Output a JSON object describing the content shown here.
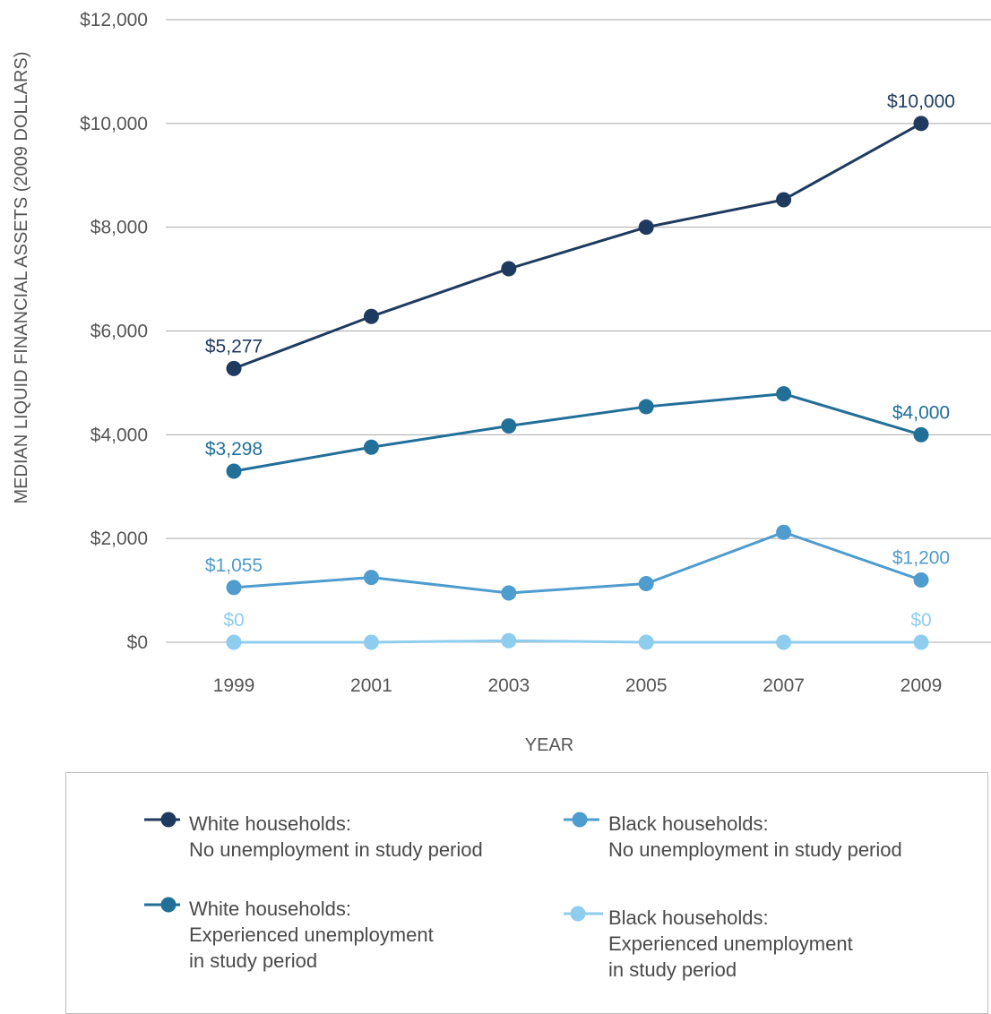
{
  "chart_data": {
    "type": "line",
    "title": "",
    "ylabel": "MEDIAN LIQUID FINANCIAL ASSETS (2009 DOLLARS)",
    "xlabel": "YEAR",
    "x": [
      "1999",
      "2001",
      "2003",
      "2005",
      "2007",
      "2009"
    ],
    "ylim": [
      0,
      12000
    ],
    "yticks": [
      0,
      2000,
      4000,
      6000,
      8000,
      10000,
      12000
    ],
    "ytick_labels": [
      "$0",
      "$2,000",
      "$4,000",
      "$6,000",
      "$8,000",
      "$10,000",
      "$12,000"
    ],
    "grid": true,
    "legend_position": "bottom",
    "series": [
      {
        "legend_line1": "White households:",
        "legend_line2": "No unemployment in study period",
        "legend_line3": "",
        "color": "#1f3a5f",
        "values": [
          5277,
          6280,
          7200,
          8000,
          8530,
          10000
        ],
        "start_label": "$5,277",
        "end_label": "$10,000"
      },
      {
        "legend_line1": "White households:",
        "legend_line2": "Experienced unemployment",
        "legend_line3": "in study period",
        "color": "#226f98",
        "values": [
          3298,
          3760,
          4170,
          4540,
          4790,
          4000
        ],
        "start_label": "$3,298",
        "end_label": "$4,000"
      },
      {
        "legend_line1": "Black households:",
        "legend_line2": "No unemployment in study period",
        "legend_line3": "",
        "color": "#4f9ccf",
        "values": [
          1055,
          1250,
          950,
          1130,
          2120,
          1200
        ],
        "start_label": "$1,055",
        "end_label": "$1,200"
      },
      {
        "legend_line1": "Black households:",
        "legend_line2": "Experienced unemployment",
        "legend_line3": "in study period",
        "color": "#8fcdee",
        "values": [
          0,
          0,
          30,
          0,
          0,
          0
        ],
        "start_label": "$0",
        "end_label": "$0"
      }
    ]
  }
}
